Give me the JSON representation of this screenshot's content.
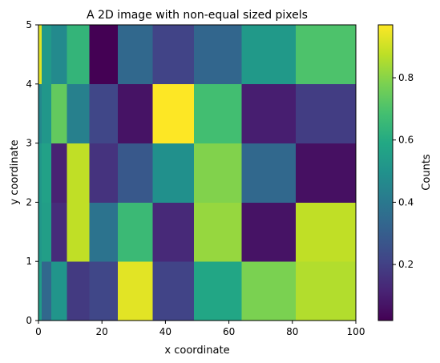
{
  "chart_data": {
    "type": "heatmap",
    "title": "A 2D image with non-equal sized pixels",
    "xlabel": "x coordinate",
    "ylabel": "y coordinate",
    "xlim": [
      0,
      100
    ],
    "ylim": [
      0,
      5
    ],
    "grid": false,
    "x_edges": [
      0,
      1,
      4,
      9,
      16,
      25,
      36,
      49,
      64,
      81,
      100
    ],
    "y_edges": [
      0,
      1,
      2,
      3,
      4,
      5
    ],
    "x_ticks": [
      0,
      20,
      40,
      60,
      80,
      100
    ],
    "y_ticks": [
      0,
      1,
      2,
      3,
      4,
      5
    ],
    "values": [
      [
        0.54,
        0.34,
        0.51,
        0.18,
        0.22,
        0.93,
        0.21,
        0.58,
        0.78,
        0.86
      ],
      [
        0.52,
        0.55,
        0.14,
        0.88,
        0.38,
        0.66,
        0.13,
        0.82,
        0.07,
        0.88
      ],
      [
        0.52,
        0.56,
        0.11,
        0.88,
        0.16,
        0.28,
        0.49,
        0.79,
        0.34,
        0.06
      ],
      [
        0.46,
        0.52,
        0.74,
        0.43,
        0.22,
        0.07,
        0.97,
        0.68,
        0.1,
        0.19
      ],
      [
        0.93,
        0.53,
        0.47,
        0.64,
        0.02,
        0.34,
        0.21,
        0.33,
        0.53,
        0.7
      ]
    ],
    "colorbar": {
      "label": "Counts",
      "colormap": "viridis",
      "range": [
        0.02,
        0.97
      ],
      "ticks": [
        0.2,
        0.4,
        0.6,
        0.8
      ]
    }
  }
}
